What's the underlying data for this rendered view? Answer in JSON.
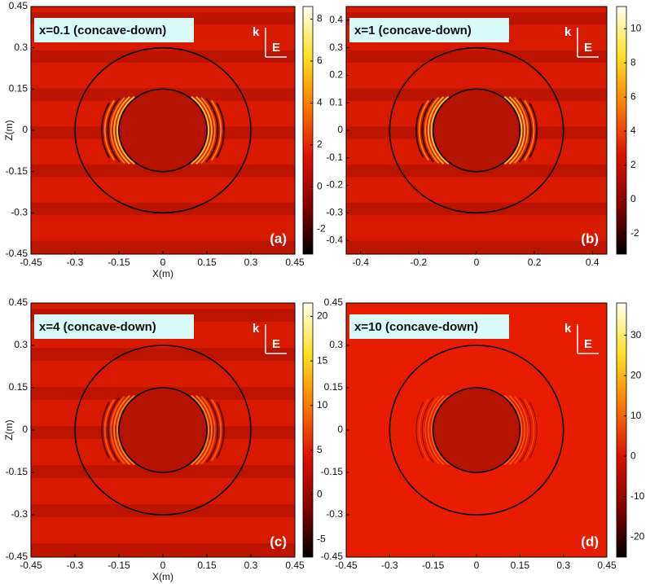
{
  "chart_data": [
    {
      "type": "field-map",
      "title": "x=0.1 (concave-down)",
      "panel_label": "(a)",
      "xlabel": "X(m)",
      "ylabel": "Z(m)",
      "annotations": [
        "k",
        "E"
      ],
      "xlim": [
        -0.45,
        0.45
      ],
      "ylim": [
        -0.45,
        0.45
      ],
      "xticks": [
        -0.45,
        -0.3,
        -0.15,
        0,
        0.15,
        0.3,
        0.45
      ],
      "yticks": [
        -0.45,
        -0.3,
        -0.15,
        0,
        0.15,
        0.3,
        0.45
      ],
      "circle_radii": [
        0.15,
        0.3
      ],
      "clim": [
        -3.2,
        8.6
      ],
      "cticks": [
        -2,
        0,
        2,
        4,
        6,
        8
      ]
    },
    {
      "type": "field-map",
      "title": "x=1 (concave-down)",
      "panel_label": "(b)",
      "annotations": [
        "k",
        "E"
      ],
      "xlim": [
        -0.45,
        0.45
      ],
      "ylim": [
        -0.45,
        0.45
      ],
      "xticks": [
        -0.4,
        -0.2,
        0,
        0.2,
        0.4
      ],
      "yticks": [
        -0.4,
        -0.3,
        -0.2,
        -0.1,
        0,
        0.1,
        0.2,
        0.3,
        0.4
      ],
      "circle_radii": [
        0.15,
        0.3
      ],
      "clim": [
        -3.2,
        11.3
      ],
      "cticks": [
        -2,
        0,
        2,
        4,
        6,
        8,
        10
      ]
    },
    {
      "type": "field-map",
      "title": "x=4 (concave-down)",
      "panel_label": "(c)",
      "xlabel": "X(m)",
      "ylabel": "Z(m)",
      "annotations": [
        "k",
        "E"
      ],
      "xlim": [
        -0.45,
        0.45
      ],
      "ylim": [
        -0.45,
        0.45
      ],
      "xticks": [
        -0.45,
        -0.3,
        -0.15,
        0,
        0.15,
        0.3,
        0.45
      ],
      "yticks": [
        -0.45,
        -0.3,
        -0.15,
        0,
        0.15,
        0.3,
        0.45
      ],
      "circle_radii": [
        0.15,
        0.3
      ],
      "clim": [
        -7,
        21.5
      ],
      "cticks": [
        -5,
        0,
        5,
        10,
        15,
        20
      ]
    },
    {
      "type": "field-map",
      "title": "x=10 (concave-down)",
      "panel_label": "(d)",
      "annotations": [
        "k",
        "E"
      ],
      "xlim": [
        -0.45,
        0.45
      ],
      "ylim": [
        -0.45,
        0.45
      ],
      "xticks": [
        -0.45,
        -0.3,
        -0.15,
        0,
        0.15,
        0.3,
        0.45
      ],
      "yticks": [
        -0.45,
        -0.3,
        -0.15,
        0,
        0.15,
        0.3,
        0.45
      ],
      "circle_radii": [
        0.15,
        0.3
      ],
      "clim": [
        -25,
        38
      ],
      "cticks": [
        -20,
        -10,
        0,
        10,
        20,
        30
      ]
    }
  ]
}
